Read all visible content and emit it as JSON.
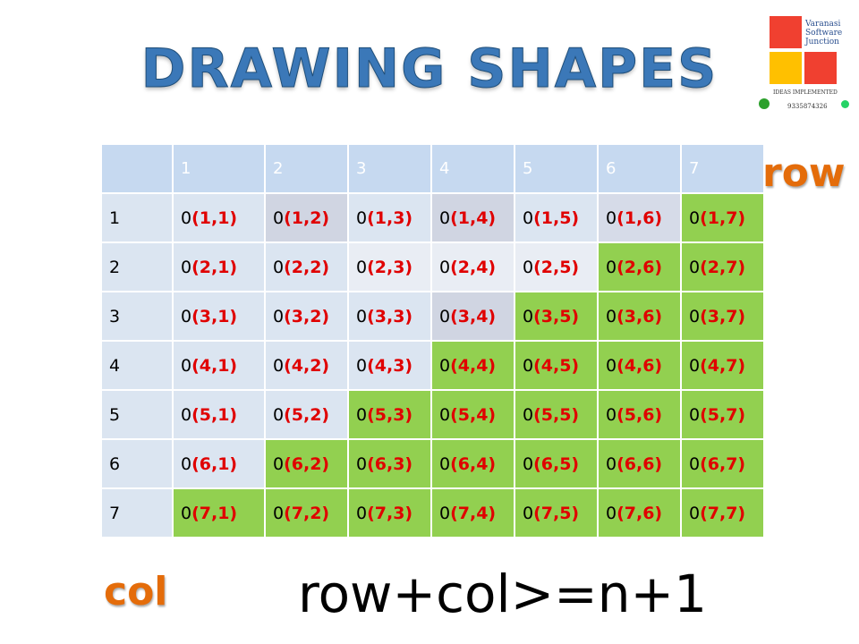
{
  "header": {
    "title": "DRAWING SHAPES"
  },
  "logo": {
    "name_lines": [
      "Varanasi",
      "Software",
      "Junction"
    ],
    "tagline": "IDEAS IMPLEMENTED",
    "phone": "9335874326"
  },
  "table": {
    "header": [
      "",
      "1",
      "2",
      "3",
      "4",
      "5",
      "6",
      "7"
    ],
    "header_fill": "#c6d9f0",
    "label_fill": "#dbe5f1",
    "rows": [
      {
        "label": "1",
        "cells": [
          [
            "0",
            "(1,1)"
          ],
          [
            "0",
            "(1,2)"
          ],
          [
            "0",
            "(1,3)"
          ],
          [
            "0",
            "(1,4)"
          ],
          [
            "0",
            "(1,5)"
          ],
          [
            "0",
            "(1,6)"
          ],
          [
            "0",
            "(1,7)"
          ]
        ],
        "fills": [
          "#dbe5f1",
          "#d0d5e2",
          "#dbe5f1",
          "#d0d5e2",
          "#dbe5f1",
          "#d6dbe8",
          "#92d050"
        ]
      },
      {
        "label": "2",
        "cells": [
          [
            "0",
            "(2,1)"
          ],
          [
            "0",
            "(2,2)"
          ],
          [
            "0",
            "(2,3)"
          ],
          [
            "0",
            "(2,4)"
          ],
          [
            "0",
            "(2,5)"
          ],
          [
            "0",
            "(2,6)"
          ],
          [
            "0",
            "(2,7)"
          ]
        ],
        "fills": [
          "#dbe5f1",
          "#dbe5f1",
          "#e9edf4",
          "#e9edf4",
          "#e9edf4",
          "#92d050",
          "#92d050"
        ]
      },
      {
        "label": "3",
        "cells": [
          [
            "0",
            "(3,1)"
          ],
          [
            "0",
            "(3,2)"
          ],
          [
            "0",
            "(3,3)"
          ],
          [
            "0",
            "(3,4)"
          ],
          [
            "0",
            "(3,5)"
          ],
          [
            "0",
            "(3,6)"
          ],
          [
            "0",
            "(3,7)"
          ]
        ],
        "fills": [
          "#dbe5f1",
          "#dbe5f1",
          "#dbe5f1",
          "#d0d5e2",
          "#92d050",
          "#92d050",
          "#92d050"
        ]
      },
      {
        "label": "4",
        "cells": [
          [
            "0",
            "(4,1)"
          ],
          [
            "0",
            "(4,2)"
          ],
          [
            "0",
            "(4,3)"
          ],
          [
            "0",
            "(4,4)"
          ],
          [
            "0",
            "(4,5)"
          ],
          [
            "0",
            "(4,6)"
          ],
          [
            "0",
            "(4,7)"
          ]
        ],
        "fills": [
          "#dbe5f1",
          "#dbe5f1",
          "#dbe5f1",
          "#92d050",
          "#92d050",
          "#92d050",
          "#92d050"
        ]
      },
      {
        "label": "5",
        "cells": [
          [
            "0",
            "(5,1)"
          ],
          [
            "0",
            "(5,2)"
          ],
          [
            "0",
            "(5,3)"
          ],
          [
            "0",
            "(5,4)"
          ],
          [
            "0",
            "(5,5)"
          ],
          [
            "0",
            "(5,6)"
          ],
          [
            "0",
            "(5,7)"
          ]
        ],
        "fills": [
          "#dbe5f1",
          "#dbe5f1",
          "#92d050",
          "#92d050",
          "#92d050",
          "#92d050",
          "#92d050"
        ]
      },
      {
        "label": "6",
        "cells": [
          [
            "0",
            "(6,1)"
          ],
          [
            "0",
            "(6,2)"
          ],
          [
            "0",
            "(6,3)"
          ],
          [
            "0",
            "(6,4)"
          ],
          [
            "0",
            "(6,5)"
          ],
          [
            "0",
            "(6,6)"
          ],
          [
            "0",
            "(6,7)"
          ]
        ],
        "fills": [
          "#dbe5f1",
          "#92d050",
          "#92d050",
          "#92d050",
          "#92d050",
          "#92d050",
          "#92d050"
        ]
      },
      {
        "label": "7",
        "cells": [
          [
            "0",
            "(7,1)"
          ],
          [
            "0",
            "(7,2)"
          ],
          [
            "0",
            "(7,3)"
          ],
          [
            "0",
            "(7,4)"
          ],
          [
            "0",
            "(7,5)"
          ],
          [
            "0",
            "(7,6)"
          ],
          [
            "0",
            "(7,7)"
          ]
        ],
        "fills": [
          "#92d050",
          "#92d050",
          "#92d050",
          "#92d050",
          "#92d050",
          "#92d050",
          "#92d050"
        ]
      }
    ]
  },
  "labels": {
    "row": "row",
    "col": "col",
    "formula": "row+col>=n+1"
  }
}
